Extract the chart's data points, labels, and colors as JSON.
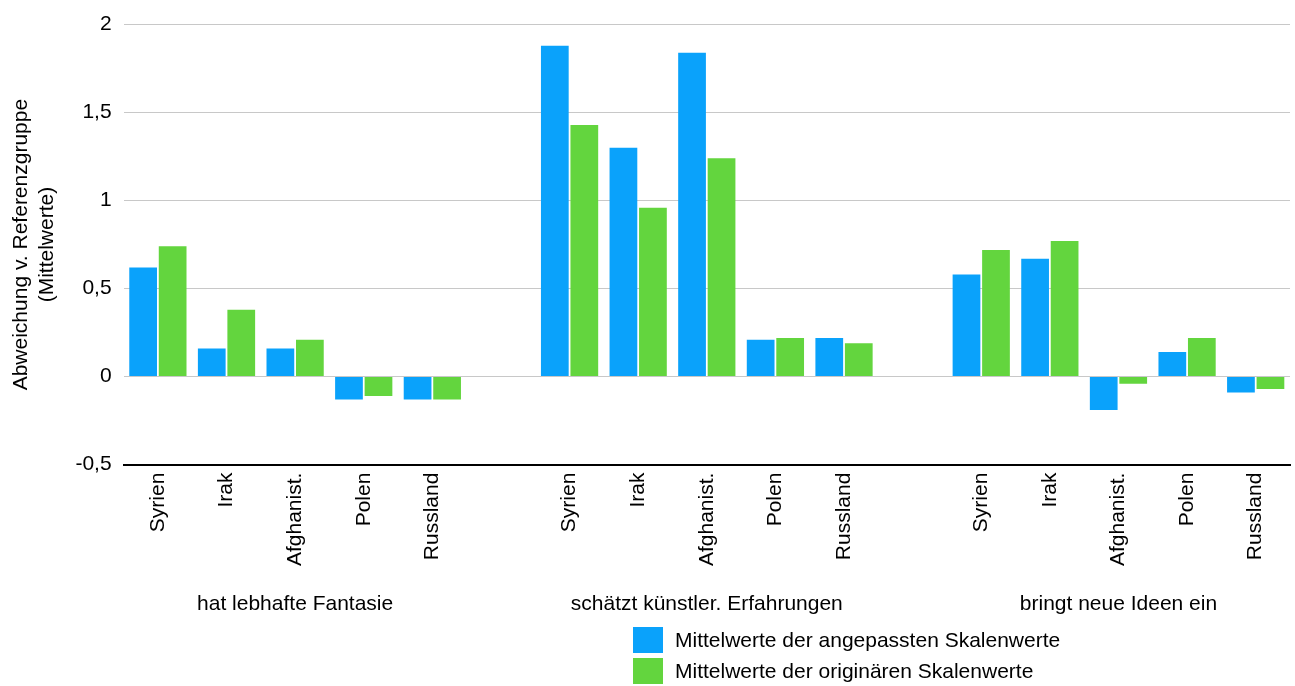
{
  "chart_data": {
    "type": "bar",
    "ylabel": "Abweichung v. Referenzgruppe\n(Mittelwerte)",
    "categories": [
      "Syrien",
      "Irak",
      "Afghanist.",
      "Polen",
      "Russland",
      null,
      "Syrien",
      "Irak",
      "Afghanist.",
      "Polen",
      "Russland",
      null,
      "Syrien",
      "Irak",
      "Afghanist.",
      "Polen",
      "Russland"
    ],
    "series": [
      {
        "name": "Mittelwerte der angepassten Skalenwerte",
        "color": "#0aa2fb",
        "values": [
          0.62,
          0.16,
          0.16,
          -0.13,
          -0.13,
          null,
          1.88,
          1.3,
          1.84,
          0.21,
          0.22,
          null,
          0.58,
          0.67,
          -0.19,
          0.14,
          -0.09
        ]
      },
      {
        "name": "Mittelwerte der originären Skalenwerte",
        "color": "#63d53e",
        "values": [
          0.74,
          0.38,
          0.21,
          -0.11,
          -0.13,
          null,
          1.43,
          0.96,
          1.24,
          0.22,
          0.19,
          null,
          0.72,
          0.77,
          -0.04,
          0.22,
          -0.07
        ]
      }
    ],
    "annotations": [
      "hat lebhafte Fantasie",
      "schätzt künstler. Erfahrungen",
      "bringt neue Ideen ein"
    ],
    "ylim": [
      -0.5,
      2
    ],
    "yticks": [
      {
        "value": -0.5,
        "label": "-0,5"
      },
      0,
      {
        "value": 0.5,
        "label": "0,5"
      },
      1,
      {
        "value": 1.5,
        "label": "1,5"
      },
      2
    ],
    "grid": "y",
    "legend": "bottom"
  }
}
